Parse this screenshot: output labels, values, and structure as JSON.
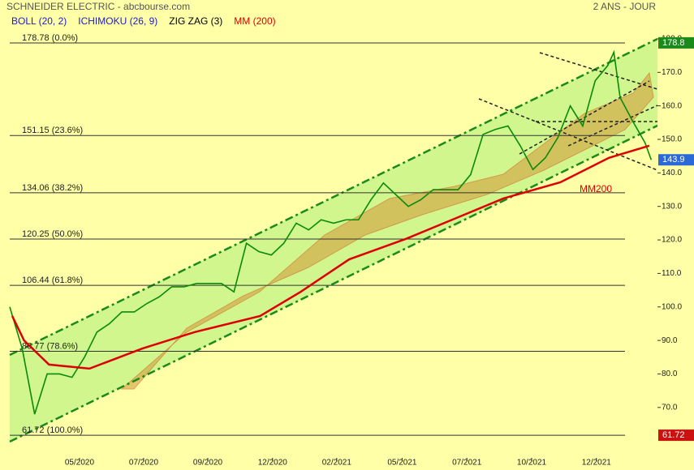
{
  "chart_data": {
    "type": "line",
    "title": "SCHNEIDER ELECTRIC - abcbourse.com",
    "subtitle": "2 ANS - JOUR",
    "indicators": [
      {
        "name": "BOLL (20, 2)",
        "color": "#1a1ad0"
      },
      {
        "name": "ICHIMOKU (26, 9)",
        "color": "#1a1ad0"
      },
      {
        "name": "ZIG ZAG (3)",
        "color": "#000000"
      },
      {
        "name": "MM (200)",
        "color": "#dd0000"
      }
    ],
    "xlim": [
      0,
      104
    ],
    "xticks": [
      {
        "value": 11.2,
        "label": "05/2020"
      },
      {
        "value": 21.5,
        "label": "07/2020"
      },
      {
        "value": 31.8,
        "label": "09/2020"
      },
      {
        "value": 42.2,
        "label": "12/2020"
      },
      {
        "value": 52.5,
        "label": "02/2021"
      },
      {
        "value": 63,
        "label": "05/2021"
      },
      {
        "value": 73.4,
        "label": "07/2021"
      },
      {
        "value": 83.8,
        "label": "10/2021"
      },
      {
        "value": 94.2,
        "label": "12/2021"
      }
    ],
    "ylim": [
      54,
      187
    ],
    "yticks": [
      {
        "value": 70,
        "label": "70.0"
      },
      {
        "value": 80,
        "label": "80.0"
      },
      {
        "value": 90,
        "label": "90.0"
      },
      {
        "value": 100,
        "label": "100.0"
      },
      {
        "value": 110,
        "label": "110.0"
      },
      {
        "value": 120,
        "label": "120.0"
      },
      {
        "value": 130,
        "label": "130.0"
      },
      {
        "value": 140,
        "label": "140.0"
      },
      {
        "value": 150,
        "label": "150.0"
      },
      {
        "value": 160,
        "label": "160.0"
      },
      {
        "value": 170,
        "label": "170.0"
      },
      {
        "value": 180,
        "label": "180.0"
      }
    ],
    "series": [
      {
        "name": "SCHNEIDER ELECTRIC",
        "color": "#0a8a0a",
        "x": [
          0,
          2,
          4,
          6,
          8,
          10,
          12,
          14,
          16,
          18,
          20,
          22,
          24,
          26,
          28,
          30,
          32,
          34,
          36,
          38,
          40,
          42,
          44,
          46,
          48,
          50,
          52,
          54,
          56,
          58,
          60,
          62,
          64,
          66,
          68,
          70,
          72,
          74,
          76,
          78,
          80,
          82,
          84,
          86,
          88,
          90,
          92,
          94,
          96,
          97,
          98,
          100,
          102,
          103
        ],
        "values": [
          100,
          87.6,
          68,
          80,
          80,
          79,
          85,
          92.5,
          95,
          98.5,
          98.5,
          101,
          103,
          106,
          106,
          107,
          107,
          107,
          104.5,
          119,
          116.5,
          115.5,
          119,
          125,
          123,
          126,
          125,
          126,
          126,
          132,
          137,
          133.5,
          130,
          132,
          135,
          135,
          135,
          139.5,
          151.5,
          153,
          154,
          148,
          141,
          144.5,
          150.5,
          160,
          154,
          167.5,
          172,
          176,
          162.5,
          155.5,
          149,
          143.9
        ]
      },
      {
        "name": "MM200",
        "color": "#dd0000",
        "x": [
          0.4,
          2.3,
          6.3,
          12.8,
          21.3,
          29.7,
          40.2,
          46.7,
          54.5,
          63.6,
          71.4,
          79.3,
          88.4,
          96.2,
          102.7
        ],
        "values": [
          97.3,
          90,
          82.8,
          81.6,
          87.6,
          92.5,
          97.3,
          104.5,
          114.2,
          120.3,
          126.3,
          132.4,
          137.2,
          144.5,
          148.1
        ]
      }
    ],
    "levels": [
      {
        "value": 178.78,
        "label": "178.78  (0.0%)"
      },
      {
        "value": 151.15,
        "label": "151.15  (23.6%)"
      },
      {
        "value": 134.06,
        "label": "134.06  (38.2%)"
      },
      {
        "value": 120.25,
        "label": "120.25  (50.0%)"
      },
      {
        "value": 106.44,
        "label": "106.44  (61.8%)"
      },
      {
        "value": 86.77,
        "label": "86.77  (78.6%)"
      },
      {
        "value": 61.72,
        "label": "61.72  (100.0%)"
      }
    ],
    "price_tags": [
      {
        "value": 178.8,
        "color": "#1a8a1a"
      },
      {
        "value": 143.9,
        "color": "#2a6ad8"
      },
      {
        "value": 61.72,
        "color": "#cc1111"
      }
    ]
  }
}
